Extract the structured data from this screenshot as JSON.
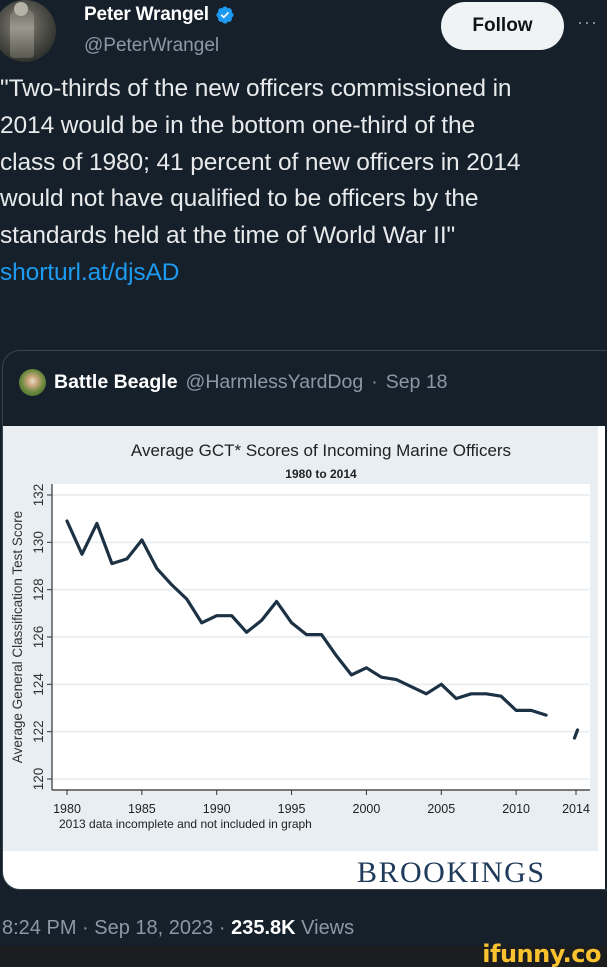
{
  "tweet": {
    "author": {
      "display_name": "Peter Wrangel",
      "handle": "@PeterWrangel",
      "verified": true,
      "verified_color": "#1d9bf0"
    },
    "follow_label": "Follow",
    "more_label": "···",
    "text_lines": [
      "\"Two-thirds of the new officers commissioned in",
      "2014 would be in the bottom one-third of the",
      "class of 1980; 41 percent of new officers in 2014",
      "would not have qualified to be officers by the",
      "standards held at the time of World War II\""
    ],
    "link": "shorturl.at/djsAD",
    "quote": {
      "display_name": "Battle Beagle",
      "handle": "@HarmlessYardDog",
      "separator": "·",
      "date": "Sep 18",
      "media_brand": "BROOKINGS"
    },
    "meta": {
      "time": "8:24 PM",
      "separator": "·",
      "date": "Sep 18, 2023",
      "views_count": "235.8K",
      "views_label": "Views"
    }
  },
  "watermark": "ifunny.co",
  "colors": {
    "background": "#15202b",
    "link": "#1d9bf0",
    "secondary_text": "#8b98a5",
    "line": "#1c3144",
    "brand": "#1f3a5a",
    "watermark": "#f9c22e"
  },
  "chart_data": {
    "type": "line",
    "title": "Average GCT* Scores of Incoming Marine Officers",
    "subtitle": "1980 to 2014",
    "xlabel": "",
    "ylabel": "Average General Classification Test Score",
    "note": "2013 data incomplete and not included in graph",
    "x_ticks": [
      "1980",
      "1985",
      "1990",
      "1995",
      "2000",
      "2005",
      "2010",
      "2014"
    ],
    "y_ticks": [
      "120",
      "122",
      "124",
      "126",
      "128",
      "130",
      "132"
    ],
    "ylim": [
      120,
      132
    ],
    "xlim": [
      1980,
      2014
    ],
    "grid": true,
    "legend": null,
    "series": [
      {
        "name": "Average GCT Score",
        "x": [
          1980,
          1981,
          1982,
          1983,
          1984,
          1985,
          1986,
          1987,
          1988,
          1989,
          1990,
          1991,
          1992,
          1993,
          1994,
          1995,
          1996,
          1997,
          1998,
          1999,
          2000,
          2001,
          2002,
          2003,
          2004,
          2005,
          2006,
          2007,
          2008,
          2009,
          2010,
          2011,
          2012,
          2014
        ],
        "values": [
          130.9,
          129.5,
          130.8,
          129.1,
          129.3,
          130.1,
          128.9,
          128.2,
          127.6,
          126.6,
          126.9,
          126.9,
          126.2,
          126.7,
          127.5,
          126.6,
          126.1,
          126.1,
          125.2,
          124.4,
          124.7,
          124.3,
          124.2,
          123.9,
          123.6,
          124.0,
          123.4,
          123.6,
          123.6,
          123.5,
          122.9,
          122.9,
          122.7,
          121.9
        ]
      }
    ]
  }
}
